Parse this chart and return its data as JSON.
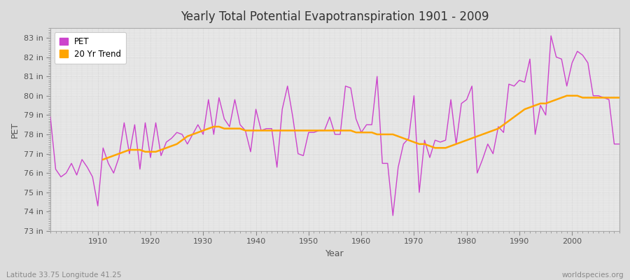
{
  "title": "Yearly Total Potential Evapotranspiration 1901 - 2009",
  "xlabel": "Year",
  "ylabel": "PET",
  "subtitle": "Latitude 33.75 Longitude 41.25",
  "watermark": "worldspecies.org",
  "ylim": [
    73,
    83.5
  ],
  "yticks": [
    73,
    74,
    75,
    76,
    77,
    78,
    79,
    80,
    81,
    82,
    83
  ],
  "ytick_labels": [
    "73 in",
    "74 in",
    "75 in",
    "76 in",
    "77 in",
    "78 in",
    "79 in",
    "80 in",
    "81 in",
    "82 in",
    "83 in"
  ],
  "xticks": [
    1910,
    1920,
    1930,
    1940,
    1950,
    1960,
    1970,
    1980,
    1990,
    2000
  ],
  "pet_color": "#CC44CC",
  "trend_color": "#FFA500",
  "background_color": "#DCDCDC",
  "plot_bg_color": "#E8E8E8",
  "grid_color": "#C8C8C8",
  "legend_pet": "PET",
  "legend_trend": "20 Yr Trend",
  "years": [
    1901,
    1902,
    1903,
    1904,
    1905,
    1906,
    1907,
    1908,
    1909,
    1910,
    1911,
    1912,
    1913,
    1914,
    1915,
    1916,
    1917,
    1918,
    1919,
    1920,
    1921,
    1922,
    1923,
    1924,
    1925,
    1926,
    1927,
    1928,
    1929,
    1930,
    1931,
    1932,
    1933,
    1934,
    1935,
    1936,
    1937,
    1938,
    1939,
    1940,
    1941,
    1942,
    1943,
    1944,
    1945,
    1946,
    1947,
    1948,
    1949,
    1950,
    1951,
    1952,
    1953,
    1954,
    1955,
    1956,
    1957,
    1958,
    1959,
    1960,
    1961,
    1962,
    1963,
    1964,
    1965,
    1966,
    1967,
    1968,
    1969,
    1970,
    1971,
    1972,
    1973,
    1974,
    1975,
    1976,
    1977,
    1978,
    1979,
    1980,
    1981,
    1982,
    1983,
    1984,
    1985,
    1986,
    1987,
    1988,
    1989,
    1990,
    1991,
    1992,
    1993,
    1994,
    1995,
    1996,
    1997,
    1998,
    1999,
    2000,
    2001,
    2002,
    2003,
    2004,
    2005,
    2006,
    2007,
    2008,
    2009
  ],
  "pet_values": [
    78.9,
    76.2,
    75.8,
    76.0,
    76.5,
    75.9,
    76.7,
    76.3,
    75.8,
    74.3,
    77.3,
    76.5,
    76.0,
    76.8,
    78.6,
    77.0,
    78.5,
    76.2,
    78.6,
    76.8,
    78.6,
    76.9,
    77.6,
    77.8,
    78.1,
    78.0,
    77.5,
    78.0,
    78.5,
    78.0,
    79.8,
    78.0,
    79.9,
    78.8,
    78.4,
    79.8,
    78.5,
    78.2,
    77.1,
    79.3,
    78.2,
    78.3,
    78.3,
    76.3,
    79.3,
    80.5,
    78.9,
    77.0,
    76.9,
    78.1,
    78.1,
    78.2,
    78.2,
    78.9,
    78.0,
    78.0,
    80.5,
    80.4,
    78.8,
    78.1,
    78.5,
    78.5,
    81.0,
    76.5,
    76.5,
    73.8,
    76.3,
    77.5,
    77.8,
    80.0,
    75.0,
    77.7,
    76.8,
    77.7,
    77.6,
    77.7,
    79.8,
    77.5,
    79.6,
    79.8,
    80.5,
    76.0,
    76.7,
    77.5,
    77.0,
    78.4,
    78.1,
    80.6,
    80.5,
    80.8,
    80.7,
    81.9,
    78.0,
    79.5,
    79.0,
    83.1,
    82.0,
    81.9,
    80.5,
    81.7,
    82.3,
    82.1,
    81.7,
    80.0,
    80.0,
    79.9,
    79.8,
    77.5,
    77.5
  ],
  "trend_values_years": [
    1911,
    1912,
    1913,
    1914,
    1915,
    1916,
    1917,
    1918,
    1919,
    1920,
    1921,
    1922,
    1923,
    1924,
    1925,
    1926,
    1927,
    1928,
    1929,
    1930,
    1931,
    1932,
    1933,
    1934,
    1935,
    1936,
    1937,
    1938,
    1939,
    1940,
    1941,
    1942,
    1943,
    1944,
    1945,
    1946,
    1947,
    1948,
    1949,
    1950,
    1951,
    1952,
    1953,
    1954,
    1955,
    1956,
    1957,
    1958,
    1959,
    1960,
    1961,
    1962,
    1963,
    1964,
    1965,
    1966,
    1967,
    1968,
    1969,
    1970,
    1971,
    1972,
    1973,
    1974,
    1975,
    1976,
    1977,
    1978,
    1979,
    1980,
    1981,
    1982,
    1983,
    1984,
    1985,
    1986,
    1987,
    1988,
    1989,
    1990,
    1991,
    1992,
    1993,
    1994,
    1995,
    1996,
    1997,
    1998,
    1999,
    2000,
    2001,
    2002,
    2003,
    2004,
    2005,
    2006,
    2007,
    2008,
    2009
  ],
  "trend_values": [
    76.7,
    76.8,
    76.9,
    77.0,
    77.1,
    77.2,
    77.2,
    77.2,
    77.1,
    77.1,
    77.1,
    77.2,
    77.3,
    77.4,
    77.5,
    77.7,
    77.9,
    78.0,
    78.1,
    78.2,
    78.3,
    78.4,
    78.4,
    78.3,
    78.3,
    78.3,
    78.3,
    78.2,
    78.2,
    78.2,
    78.2,
    78.2,
    78.2,
    78.2,
    78.2,
    78.2,
    78.2,
    78.2,
    78.2,
    78.2,
    78.2,
    78.2,
    78.2,
    78.2,
    78.2,
    78.2,
    78.2,
    78.2,
    78.1,
    78.1,
    78.1,
    78.1,
    78.0,
    78.0,
    78.0,
    78.0,
    77.9,
    77.8,
    77.7,
    77.6,
    77.5,
    77.5,
    77.4,
    77.3,
    77.3,
    77.3,
    77.4,
    77.5,
    77.6,
    77.7,
    77.8,
    77.9,
    78.0,
    78.1,
    78.2,
    78.3,
    78.5,
    78.7,
    78.9,
    79.1,
    79.3,
    79.4,
    79.5,
    79.6,
    79.6,
    79.7,
    79.8,
    79.9,
    80.0,
    80.0,
    80.0,
    79.9,
    79.9,
    79.9,
    79.9,
    79.9,
    79.9,
    79.9,
    79.9
  ]
}
